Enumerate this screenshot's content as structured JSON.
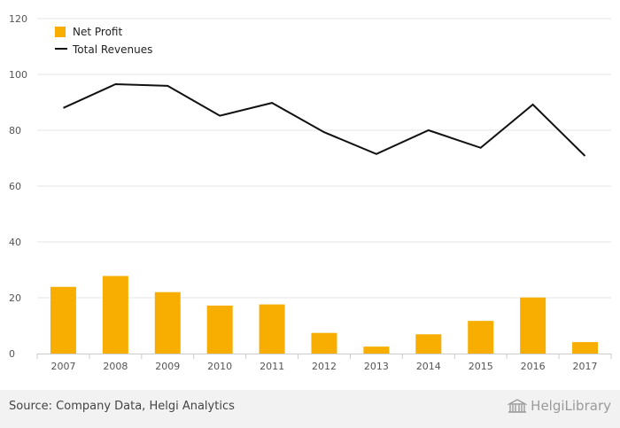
{
  "chart_data": {
    "type": "bar",
    "categories": [
      "2007",
      "2008",
      "2009",
      "2010",
      "2011",
      "2012",
      "2013",
      "2014",
      "2015",
      "2016",
      "2017"
    ],
    "ylim": [
      0,
      120
    ],
    "yticks": [
      0,
      20,
      40,
      60,
      80,
      100,
      120
    ],
    "grid": true,
    "legend_position": "top-left",
    "series": [
      {
        "name": "Net Profit",
        "type": "bar",
        "color": "#f7ae00",
        "values": [
          23.9,
          27.8,
          22.0,
          17.2,
          17.6,
          7.4,
          2.5,
          6.9,
          11.7,
          20.1,
          4.1
        ]
      },
      {
        "name": "Total Revenues",
        "type": "line",
        "color": "#111111",
        "values": [
          88.0,
          96.5,
          95.9,
          85.2,
          89.8,
          79.3,
          71.5,
          80.0,
          73.7,
          89.2,
          70.8
        ]
      }
    ]
  },
  "footer": {
    "source": "Source: Company Data, Helgi Analytics",
    "brand": "HelgiLibrary",
    "brand_icon": "library-building-icon"
  }
}
